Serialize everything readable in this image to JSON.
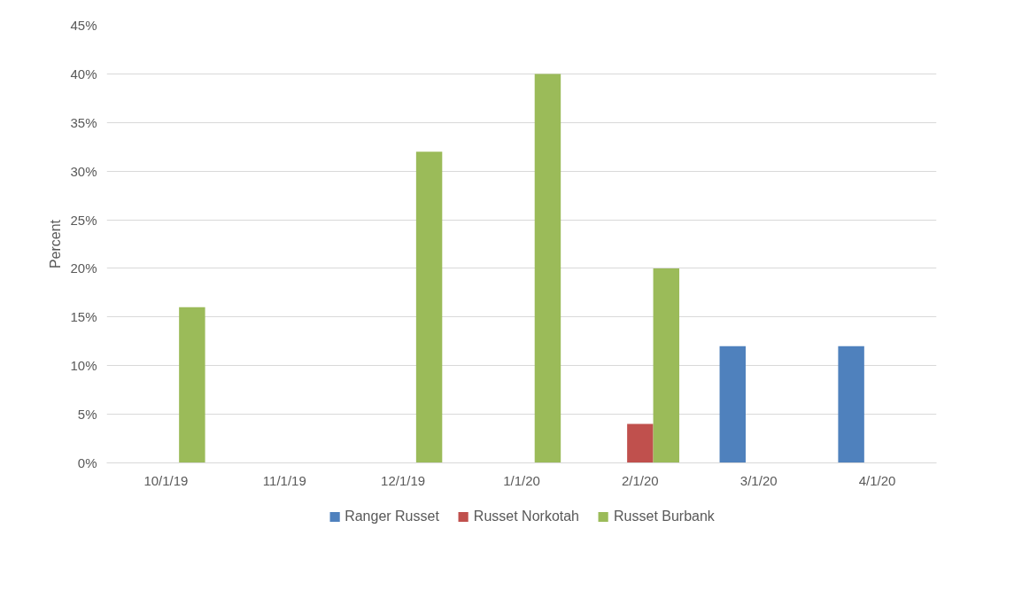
{
  "chart_data": {
    "type": "bar",
    "ylabel": "Percent",
    "categories": [
      "10/1/19",
      "11/1/19",
      "12/1/19",
      "1/1/20",
      "2/1/20",
      "3/1/20",
      "4/1/20"
    ],
    "series": [
      {
        "name": "Ranger Russet",
        "color": "#4f81bd",
        "values": [
          null,
          null,
          null,
          null,
          null,
          12,
          12
        ]
      },
      {
        "name": "Russet Norkotah",
        "color": "#c0504d",
        "values": [
          null,
          null,
          null,
          null,
          4,
          null,
          null
        ]
      },
      {
        "name": "Russet Burbank",
        "color": "#9bbb59",
        "values": [
          16,
          null,
          32,
          40,
          20,
          null,
          null
        ]
      }
    ],
    "ylim": [
      0,
      45
    ],
    "yticks": [
      {
        "value": 0,
        "label": "0%"
      },
      {
        "value": 5,
        "label": "5%"
      },
      {
        "value": 10,
        "label": "10%"
      },
      {
        "value": 15,
        "label": "15%"
      },
      {
        "value": 20,
        "label": "20%"
      },
      {
        "value": 25,
        "label": "25%"
      },
      {
        "value": 30,
        "label": "30%"
      },
      {
        "value": 35,
        "label": "35%"
      },
      {
        "value": 40,
        "label": "40%"
      },
      {
        "value": 45,
        "label": "45%"
      }
    ],
    "grid": "y",
    "legend": "bottom"
  }
}
